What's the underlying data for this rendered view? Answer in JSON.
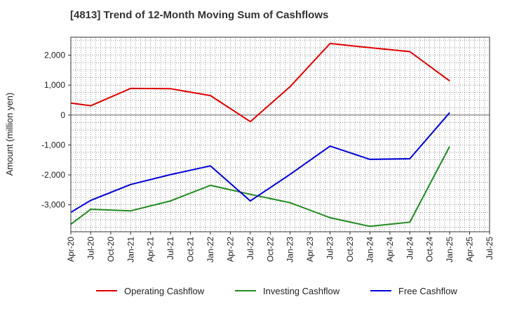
{
  "chart_data": {
    "type": "line",
    "title": "[4813]  Trend of 12-Month Moving Sum of Cashflows",
    "xlabel": "",
    "ylabel": "Amount (million yen)",
    "categories": [
      "Apr-20",
      "Jul-20",
      "Oct-20",
      "Jan-21",
      "Apr-21",
      "Jul-21",
      "Oct-21",
      "Jan-22",
      "Apr-22",
      "Jul-22",
      "Oct-22",
      "Jan-23",
      "Apr-23",
      "Jul-23",
      "Oct-23",
      "Jan-24",
      "Apr-24",
      "Jul-24",
      "Oct-24",
      "Jan-25",
      "Apr-25",
      "Jul-25"
    ],
    "ylim": [
      -3900,
      2600
    ],
    "yticks": [
      2000,
      1000,
      0,
      -1000,
      -2000,
      -3000
    ],
    "ytick_labels": [
      "2,000",
      "1,000",
      "0",
      "-1,000",
      "-2,000",
      "-3,000"
    ],
    "grid": true,
    "legend_position": "bottom",
    "series": [
      {
        "name": "Operating Cashflow",
        "color": "#e00000",
        "points": [
          [
            "Apr-20",
            400
          ],
          [
            "Jul-20",
            310
          ],
          [
            "Jan-21",
            890
          ],
          [
            "Jul-21",
            880
          ],
          [
            "Jan-22",
            650
          ],
          [
            "Jul-22",
            -220
          ],
          [
            "Jan-23",
            950
          ],
          [
            "Jul-23",
            2390
          ],
          [
            "Jan-24",
            2250
          ],
          [
            "Jul-24",
            2120
          ],
          [
            "Jan-25",
            1140
          ]
        ]
      },
      {
        "name": "Investing Cashflow",
        "color": "#228b22",
        "points": [
          [
            "Apr-20",
            -3650
          ],
          [
            "Jul-20",
            -3150
          ],
          [
            "Jan-21",
            -3200
          ],
          [
            "Jul-21",
            -2870
          ],
          [
            "Jan-22",
            -2350
          ],
          [
            "Jul-22",
            -2650
          ],
          [
            "Jan-23",
            -2930
          ],
          [
            "Jul-23",
            -3430
          ],
          [
            "Jan-24",
            -3720
          ],
          [
            "Jul-24",
            -3580
          ],
          [
            "Jan-25",
            -1050
          ]
        ]
      },
      {
        "name": "Free Cashflow",
        "color": "#0000dd",
        "points": [
          [
            "Apr-20",
            -3250
          ],
          [
            "Jul-20",
            -2850
          ],
          [
            "Jan-21",
            -2320
          ],
          [
            "Jul-21",
            -1990
          ],
          [
            "Jan-22",
            -1700
          ],
          [
            "Jul-22",
            -2870
          ],
          [
            "Jan-23",
            -1980
          ],
          [
            "Jul-23",
            -1040
          ],
          [
            "Jan-24",
            -1480
          ],
          [
            "Jul-24",
            -1460
          ],
          [
            "Jan-25",
            80
          ]
        ]
      }
    ]
  }
}
